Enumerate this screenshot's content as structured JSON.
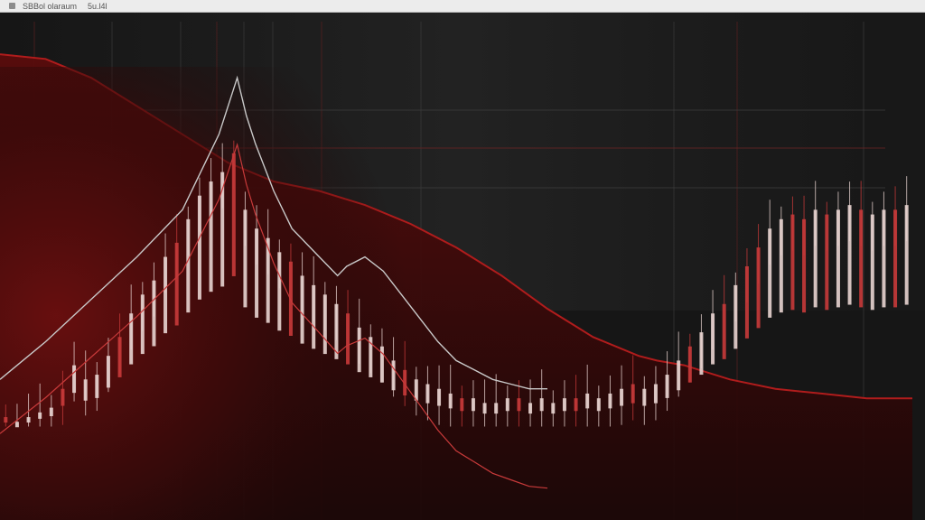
{
  "window": {
    "title": "SBBol olaraum",
    "subtitle": "5u.l4l"
  },
  "colors": {
    "background": "#141414",
    "accent": "#b01c1c",
    "candle_light": "#e8d4d0",
    "candle_red": "#c83a3a",
    "price_line": "#c9c9c9"
  },
  "chart_data": {
    "type": "bar",
    "title": "",
    "xlabel": "",
    "ylabel": "",
    "grid": true,
    "legend": "none",
    "xlim": [
      0,
      100
    ],
    "ylim": [
      0,
      100
    ],
    "series": [
      {
        "values": [
          18,
          17,
          18,
          19,
          20,
          24,
          29,
          26,
          27,
          31,
          35,
          40,
          44,
          47,
          52,
          55,
          60,
          65,
          68,
          70,
          74,
          62,
          58,
          56,
          53,
          51,
          48,
          46,
          44,
          42,
          40,
          37,
          35,
          33,
          30,
          28,
          26,
          25,
          24,
          23,
          22,
          22,
          21,
          21,
          22,
          22,
          21,
          22,
          21,
          22,
          22,
          23,
          22,
          23,
          24,
          25,
          24,
          25,
          27,
          30,
          33,
          36,
          40,
          42,
          46,
          50,
          54,
          58,
          60,
          61,
          60,
          62,
          61,
          62,
          63,
          62,
          61,
          62,
          62,
          63
        ]
      }
    ],
    "price_line": {
      "x": [
        0,
        5,
        10,
        15,
        20,
        22,
        24,
        26,
        27,
        28,
        30,
        32,
        35,
        37,
        38,
        40,
        42,
        44,
        46,
        48,
        50,
        52,
        54,
        56,
        58,
        60
      ],
      "y": [
        26,
        34,
        43,
        52,
        62,
        70,
        78,
        90,
        82,
        76,
        66,
        58,
        52,
        48,
        50,
        52,
        49,
        44,
        39,
        34,
        30,
        28,
        26,
        25,
        24,
        24
      ]
    },
    "red_curve": {
      "x": [
        0,
        5,
        10,
        15,
        20,
        25,
        30,
        35,
        40,
        45,
        50,
        55,
        60,
        65,
        70,
        72,
        75,
        80,
        85,
        90,
        95,
        100
      ],
      "y": [
        95,
        94,
        90,
        84,
        78,
        72,
        68,
        66,
        63,
        59,
        54,
        48,
        41,
        35,
        31,
        30,
        29,
        26,
        24,
        23,
        22,
        22
      ]
    }
  }
}
